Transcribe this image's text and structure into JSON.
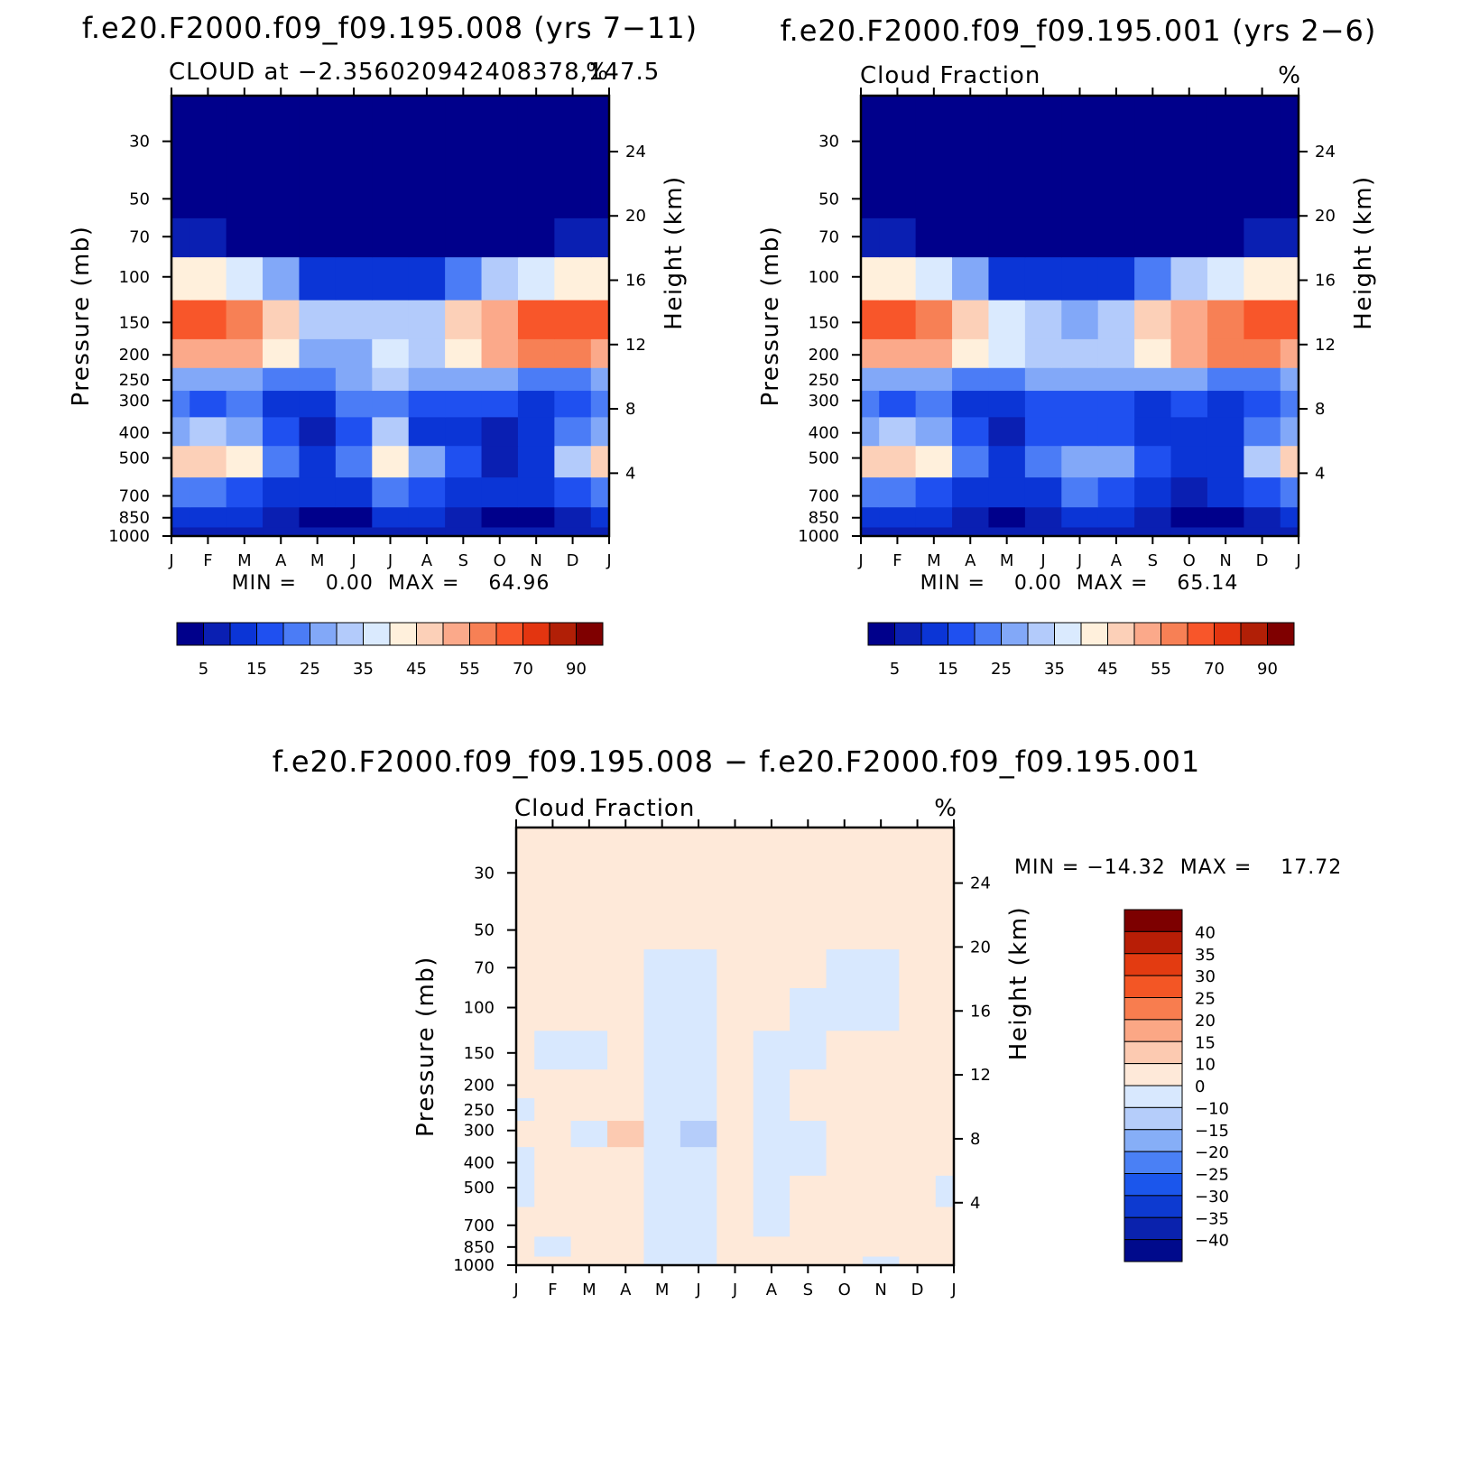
{
  "colors": {
    "seq": [
      "#00008b",
      "#0a1fb2",
      "#0b35d6",
      "#1f50f0",
      "#4b7cf6",
      "#82a8f8",
      "#b3cbfb",
      "#daeafe",
      "#fff0dc",
      "#fcd0b8",
      "#fba98a",
      "#f78055",
      "#f8562a",
      "#e33510",
      "#b11f06",
      "#7f0000"
    ],
    "diff": [
      "#000a8c",
      "#0a22ad",
      "#0d3ad0",
      "#1b56ec",
      "#4a80f5",
      "#86aef7",
      "#b5cdfa",
      "#d8e8fe",
      "#fee9d9",
      "#fccab1",
      "#fba785",
      "#f87d4f",
      "#f35625",
      "#e33b11",
      "#b81e06",
      "#7d0000"
    ]
  },
  "panels": {
    "a": {
      "title": "f.e20.F2000.f09_f09.195.008 (yrs 7−11)",
      "left_string": "CLOUD at −2.356020942408378,147.5",
      "right_string": "%",
      "stats": "MIN =    0.00  MAX =    64.96"
    },
    "b": {
      "title": "f.e20.F2000.f09_f09.195.001 (yrs 2−6)",
      "left_string": "Cloud Fraction",
      "right_string": "%",
      "stats": "MIN =    0.00  MAX =    65.14"
    },
    "c": {
      "title": "f.e20.F2000.f09_f09.195.008 − f.e20.F2000.f09_f09.195.001",
      "left_string": "Cloud Fraction",
      "right_string": "%",
      "stats": "MIN = −14.32  MAX =    17.72"
    }
  },
  "chart_data": [
    {
      "type": "heatmap",
      "panel": "a",
      "title": "f.e20.F2000.f09_f09.195.008 (yrs 7−11)",
      "xlabel": "",
      "ylabel": "Pressure (mb)",
      "ylabel_right": "Height (km)",
      "x": [
        "J",
        "F",
        "M",
        "A",
        "M",
        "J",
        "J",
        "A",
        "S",
        "O",
        "N",
        "D",
        "J"
      ],
      "y_pressure": [
        1000,
        850,
        700,
        500,
        400,
        300,
        250,
        200,
        150,
        100,
        70,
        50,
        30
      ],
      "y_ticks": [
        "30",
        "50",
        "70",
        "100",
        "150",
        "200",
        "250",
        "300",
        "400",
        "500",
        "700",
        "850",
        "1000"
      ],
      "y_right_ticks": [
        "4",
        "8",
        "12",
        "16",
        "20",
        "24"
      ],
      "levels": [
        5,
        10,
        15,
        20,
        25,
        30,
        35,
        40,
        45,
        50,
        55,
        60,
        70,
        80,
        90
      ],
      "colorbar_labels": [
        "5",
        "15",
        "25",
        "35",
        "45",
        "55",
        "70",
        "90"
      ],
      "z": [
        [
          8,
          8,
          8,
          6,
          5,
          6,
          8,
          9,
          7,
          6,
          6,
          7,
          8
        ],
        [
          12,
          12,
          11,
          6,
          3,
          4,
          12,
          10,
          8,
          4,
          4,
          8,
          12
        ],
        [
          20,
          20,
          18,
          14,
          10,
          12,
          22,
          18,
          14,
          10,
          10,
          16,
          20
        ],
        [
          45,
          48,
          40,
          20,
          12,
          20,
          40,
          28,
          18,
          8,
          14,
          30,
          45
        ],
        [
          28,
          30,
          26,
          15,
          8,
          18,
          30,
          12,
          14,
          6,
          12,
          24,
          28
        ],
        [
          20,
          18,
          20,
          14,
          10,
          20,
          22,
          16,
          18,
          16,
          14,
          18,
          20
        ],
        [
          26,
          25,
          28,
          22,
          20,
          28,
          30,
          28,
          28,
          26,
          24,
          24,
          26
        ],
        [
          50,
          54,
          54,
          44,
          26,
          28,
          38,
          30,
          44,
          52,
          58,
          58,
          50
        ],
        [
          60,
          62,
          58,
          46,
          30,
          32,
          30,
          34,
          46,
          54,
          60,
          64,
          60
        ],
        [
          44,
          42,
          36,
          26,
          14,
          10,
          10,
          14,
          22,
          30,
          36,
          42,
          44
        ],
        [
          7,
          6,
          4,
          3,
          1,
          1,
          1,
          1,
          1,
          2,
          3,
          5,
          7
        ],
        [
          0,
          0,
          0,
          0,
          0,
          0,
          0,
          0,
          0,
          0,
          0,
          0,
          0
        ],
        [
          0,
          0,
          0,
          0,
          0,
          0,
          0,
          0,
          0,
          0,
          0,
          0,
          0
        ]
      ]
    },
    {
      "type": "heatmap",
      "panel": "b",
      "title": "f.e20.F2000.f09_f09.195.001 (yrs 2−6)",
      "xlabel": "",
      "ylabel": "Pressure (mb)",
      "ylabel_right": "Height (km)",
      "x": [
        "J",
        "F",
        "M",
        "A",
        "M",
        "J",
        "J",
        "A",
        "S",
        "O",
        "N",
        "D",
        "J"
      ],
      "y_pressure": [
        1000,
        850,
        700,
        500,
        400,
        300,
        250,
        200,
        150,
        100,
        70,
        50,
        30
      ],
      "y_ticks": [
        "30",
        "50",
        "70",
        "100",
        "150",
        "200",
        "250",
        "300",
        "400",
        "500",
        "700",
        "850",
        "1000"
      ],
      "y_right_ticks": [
        "4",
        "8",
        "12",
        "16",
        "20",
        "24"
      ],
      "levels": [
        5,
        10,
        15,
        20,
        25,
        30,
        35,
        40,
        45,
        50,
        55,
        60,
        70,
        80,
        90
      ],
      "colorbar_labels": [
        "5",
        "15",
        "25",
        "35",
        "45",
        "55",
        "70",
        "90"
      ],
      "z": [
        [
          8,
          8,
          8,
          6,
          6,
          8,
          9,
          9,
          7,
          6,
          6,
          7,
          8
        ],
        [
          12,
          12,
          11,
          6,
          4,
          8,
          12,
          10,
          8,
          4,
          4,
          8,
          12
        ],
        [
          20,
          20,
          18,
          14,
          10,
          14,
          22,
          18,
          14,
          8,
          10,
          16,
          20
        ],
        [
          45,
          48,
          40,
          20,
          14,
          22,
          28,
          26,
          18,
          12,
          14,
          30,
          45
        ],
        [
          28,
          30,
          26,
          15,
          8,
          16,
          18,
          16,
          10,
          12,
          10,
          24,
          28
        ],
        [
          20,
          18,
          20,
          14,
          10,
          16,
          18,
          16,
          14,
          16,
          12,
          18,
          20
        ],
        [
          26,
          25,
          28,
          22,
          20,
          26,
          28,
          28,
          26,
          26,
          24,
          24,
          26
        ],
        [
          50,
          54,
          54,
          44,
          36,
          34,
          30,
          34,
          42,
          52,
          56,
          56,
          50
        ],
        [
          60,
          62,
          58,
          48,
          36,
          32,
          28,
          32,
          46,
          54,
          58,
          60,
          60
        ],
        [
          44,
          42,
          36,
          26,
          14,
          10,
          10,
          14,
          22,
          30,
          36,
          42,
          44
        ],
        [
          7,
          6,
          4,
          3,
          1,
          1,
          1,
          1,
          1,
          2,
          3,
          5,
          7
        ],
        [
          0,
          0,
          0,
          0,
          0,
          0,
          0,
          0,
          0,
          0,
          0,
          0,
          0
        ],
        [
          0,
          0,
          0,
          0,
          0,
          0,
          0,
          0,
          0,
          0,
          0,
          0,
          0
        ]
      ]
    },
    {
      "type": "heatmap",
      "panel": "c",
      "title": "f.e20.F2000.f09_f09.195.008 − f.e20.F2000.f09_f09.195.001",
      "xlabel": "",
      "ylabel": "Pressure (mb)",
      "ylabel_right": "Height (km)",
      "x": [
        "J",
        "F",
        "M",
        "A",
        "M",
        "J",
        "J",
        "A",
        "S",
        "O",
        "N",
        "D",
        "J"
      ],
      "y_pressure": [
        1000,
        850,
        700,
        500,
        400,
        300,
        250,
        200,
        150,
        100,
        70,
        50,
        30
      ],
      "y_ticks": [
        "30",
        "50",
        "70",
        "100",
        "150",
        "200",
        "250",
        "300",
        "400",
        "500",
        "700",
        "850",
        "1000"
      ],
      "y_right_ticks": [
        "4",
        "8",
        "12",
        "16",
        "20",
        "24"
      ],
      "levels": [
        -40,
        -35,
        -30,
        -25,
        -20,
        -15,
        -10,
        0,
        10,
        15,
        20,
        25,
        30,
        35,
        40
      ],
      "colorbar_labels": [
        "40",
        "35",
        "30",
        "25",
        "20",
        "15",
        "10",
        "0",
        "−10",
        "−15",
        "−20",
        "−25",
        "−30",
        "−35",
        "−40"
      ],
      "z": [
        [
          1,
          1,
          1,
          1,
          -2,
          -2,
          1,
          1,
          1,
          1,
          -2,
          1,
          1
        ],
        [
          1,
          -1,
          1,
          1,
          -2,
          -2,
          1,
          1,
          1,
          1,
          1,
          1,
          1
        ],
        [
          1,
          1,
          1,
          1,
          -2,
          -3,
          1,
          -1,
          1,
          1,
          1,
          1,
          1
        ],
        [
          -2,
          1,
          1,
          1,
          -2,
          -4,
          1,
          -2,
          1,
          1,
          1,
          1,
          -2
        ],
        [
          -2,
          1,
          1,
          1,
          -2,
          -6,
          1,
          -2,
          -1,
          1,
          1,
          1,
          1
        ],
        [
          1,
          1,
          -1,
          12,
          -2,
          -12,
          1,
          -2,
          -1,
          1,
          1,
          1,
          1
        ],
        [
          -1,
          1,
          1,
          8,
          -2,
          -10,
          1,
          -2,
          1,
          1,
          1,
          1,
          1
        ],
        [
          1,
          1,
          1,
          3,
          -1,
          -4,
          1,
          -1,
          1,
          1,
          1,
          1,
          1
        ],
        [
          1,
          -2,
          -2,
          1,
          -1,
          -3,
          1,
          -1,
          -2,
          1,
          1,
          1,
          1
        ],
        [
          1,
          1,
          1,
          1,
          -2,
          -2,
          1,
          1,
          -2,
          -2,
          -2,
          1,
          1
        ],
        [
          1,
          1,
          1,
          1,
          -2,
          -2,
          1,
          1,
          1,
          -2,
          -2,
          1,
          1
        ],
        [
          1,
          1,
          1,
          1,
          1,
          1,
          1,
          1,
          1,
          1,
          1,
          1,
          1
        ],
        [
          1,
          1,
          1,
          1,
          1,
          1,
          1,
          1,
          1,
          1,
          1,
          1,
          1
        ]
      ]
    }
  ]
}
